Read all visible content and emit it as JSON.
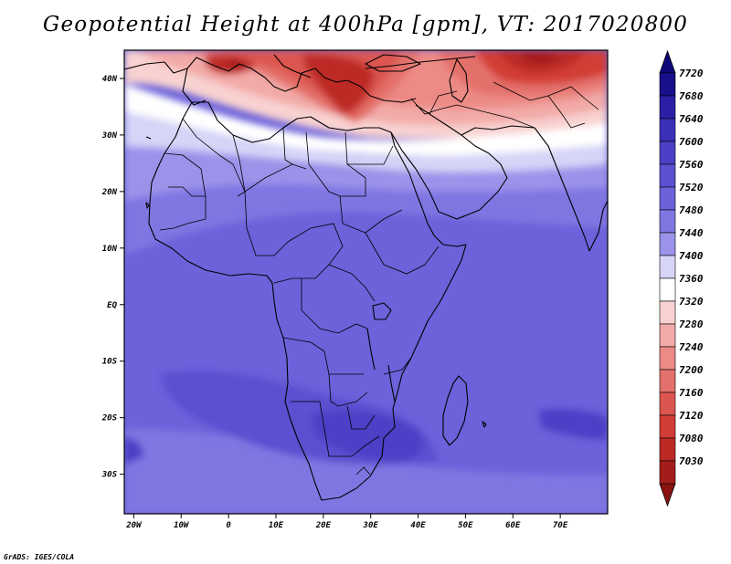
{
  "title": "Geopotential Height at 400hPa [gpm], VT: 2017020800",
  "credit": "GrADS: IGES/COLA",
  "map": {
    "extent": {
      "lon_min": -22,
      "lon_max": 80,
      "lat_min": -37,
      "lat_max": 45
    },
    "lat_ticks": [
      {
        "value": 40,
        "label": "40N"
      },
      {
        "value": 30,
        "label": "30N"
      },
      {
        "value": 20,
        "label": "20N"
      },
      {
        "value": 10,
        "label": "10N"
      },
      {
        "value": 0,
        "label": "EQ"
      },
      {
        "value": -10,
        "label": "10S"
      },
      {
        "value": -20,
        "label": "20S"
      },
      {
        "value": -30,
        "label": "30S"
      }
    ],
    "lon_ticks": [
      {
        "value": -20,
        "label": "20W"
      },
      {
        "value": -10,
        "label": "10W"
      },
      {
        "value": 0,
        "label": "0"
      },
      {
        "value": 10,
        "label": "10E"
      },
      {
        "value": 20,
        "label": "20E"
      },
      {
        "value": 30,
        "label": "30E"
      },
      {
        "value": 40,
        "label": "40E"
      },
      {
        "value": 50,
        "label": "50E"
      },
      {
        "value": 60,
        "label": "60E"
      },
      {
        "value": 70,
        "label": "70E"
      }
    ]
  },
  "colorbar": {
    "levels": [
      {
        "label": "7720",
        "color": "#18108a"
      },
      {
        "label": "7680",
        "color": "#2a1fa6"
      },
      {
        "label": "7640",
        "color": "#3a30b8"
      },
      {
        "label": "7600",
        "color": "#4b40c6"
      },
      {
        "label": "7560",
        "color": "#5b50d0"
      },
      {
        "label": "7520",
        "color": "#6c62da"
      },
      {
        "label": "7480",
        "color": "#8076e2"
      },
      {
        "label": "7440",
        "color": "#9b93ea"
      },
      {
        "label": "7400",
        "color": "#d6d4f7"
      },
      {
        "label": "7360",
        "color": "#ffffff"
      },
      {
        "label": "7320",
        "color": "#f8d2d0"
      },
      {
        "label": "7280",
        "color": "#f2aaa8"
      },
      {
        "label": "7240",
        "color": "#ec8a86"
      },
      {
        "label": "7200",
        "color": "#e4706b"
      },
      {
        "label": "7160",
        "color": "#dc5650"
      },
      {
        "label": "7120",
        "color": "#d23c36"
      },
      {
        "label": "7080",
        "color": "#bd2a26"
      },
      {
        "label": "7030",
        "color": "#a41d1b"
      }
    ],
    "top_arrow_color": "#0c0878",
    "bottom_arrow_color": "#8a1210"
  }
}
